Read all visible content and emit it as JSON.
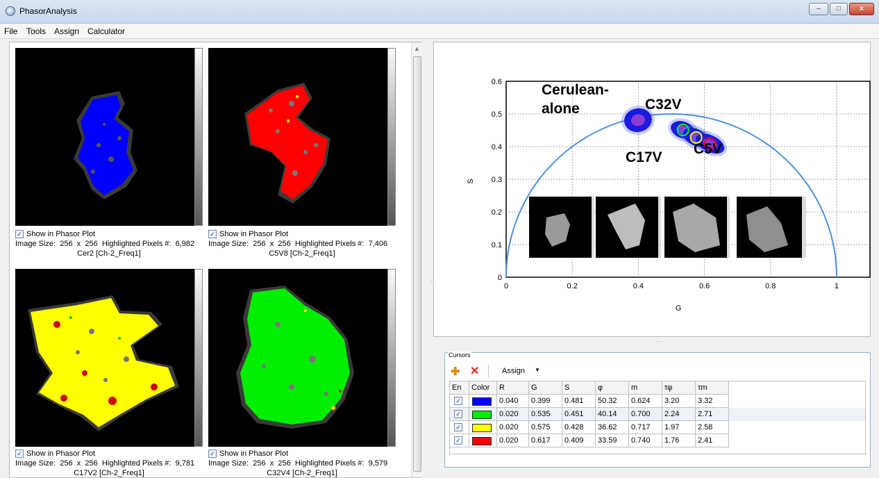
{
  "window": {
    "title": "PhasorAnalysis",
    "controls": [
      "–",
      "□",
      "x"
    ]
  },
  "menu": [
    "File",
    "Tools",
    "Assign",
    "Calculator"
  ],
  "images": [
    {
      "checkbox_label": "Show in Phasor Plot",
      "info_prefix": "Image Size:",
      "width": "256",
      "x": "x",
      "height": "256",
      "highlight_label": "Highlighted Pixels #:",
      "highlighted": "6,982",
      "caption": "Cer2 [Ch-2_Freq1]",
      "color": "#0000ff"
    },
    {
      "checkbox_label": "Show in Phasor Plot",
      "info_prefix": "Image Size:",
      "width": "256",
      "x": "x",
      "height": "256",
      "highlight_label": "Highlighted Pixels #:",
      "highlighted": "7,406",
      "caption": "C5V8 [Ch-2_Freq1]",
      "color": "#ff0000"
    },
    {
      "checkbox_label": "Show in Phasor Plot",
      "info_prefix": "Image Size:",
      "width": "256",
      "x": "x",
      "height": "256",
      "highlight_label": "Highlighted Pixels #:",
      "highlighted": "9,781",
      "caption": "C17V2 [Ch-2_Freq1]",
      "color": "#ffff00"
    },
    {
      "checkbox_label": "Show in Phasor Plot",
      "info_prefix": "Image Size:",
      "width": "256",
      "x": "x",
      "height": "256",
      "highlight_label": "Highlighted Pixels #:",
      "highlighted": "9,579",
      "caption": "C32V4 [Ch-2_Freq1]",
      "color": "#00ff00"
    }
  ],
  "chart_data": {
    "type": "scatter",
    "title": "",
    "xlabel": "G",
    "ylabel": "S",
    "xlim": [
      0,
      1.05
    ],
    "ylim": [
      0,
      0.6
    ],
    "xticks": [
      "0",
      "0.2",
      "0.4",
      "0.6",
      "0.8",
      "1"
    ],
    "yticks": [
      "0",
      "0.1",
      "0.2",
      "0.3",
      "0.4",
      "0.5",
      "0.6"
    ],
    "grid": true,
    "semicircle": {
      "center": [
        0.5,
        0
      ],
      "radius": 0.5,
      "color": "#4a90d9"
    },
    "clusters": [
      {
        "label": "Cerulean-alone",
        "center": [
          0.399,
          0.481
        ]
      },
      {
        "label": "C32V",
        "center": [
          0.535,
          0.451
        ]
      },
      {
        "label": "C17V",
        "center": [
          0.575,
          0.428
        ]
      },
      {
        "label": "C5V",
        "center": [
          0.617,
          0.409
        ]
      }
    ],
    "annotations": [
      "Cerulean-",
      "alone",
      "C32V",
      "C17V",
      "C5V"
    ],
    "cursor_markers": [
      {
        "g": 0.535,
        "s": 0.451,
        "r": 0.02,
        "color": "#00ff00"
      },
      {
        "g": 0.575,
        "s": 0.428,
        "r": 0.02,
        "color": "#ffff00"
      },
      {
        "g": 0.617,
        "s": 0.409,
        "r": 0.02,
        "color": "#ff0000"
      }
    ]
  },
  "cursors": {
    "title": "Cursors",
    "assign_label": "Assign",
    "columns": [
      "En",
      "Color",
      "R",
      "G",
      "S",
      "φ",
      "m",
      "τφ",
      "τm"
    ],
    "rows": [
      {
        "color": "#0000ff",
        "cells": [
          "0.040",
          "0.399",
          "0.481",
          "50.32",
          "0.624",
          "3.20",
          "3.32"
        ]
      },
      {
        "color": "#00ee00",
        "cells": [
          "0.020",
          "0.535",
          "0.451",
          "40.14",
          "0.700",
          "2.24",
          "2.71"
        ]
      },
      {
        "color": "#ffff00",
        "cells": [
          "0.020",
          "0.575",
          "0.428",
          "36.62",
          "0.717",
          "1.97",
          "2.58"
        ]
      },
      {
        "color": "#ff0000",
        "cells": [
          "0.020",
          "0.617",
          "0.409",
          "33.59",
          "0.740",
          "1.76",
          "2.41"
        ]
      }
    ]
  }
}
